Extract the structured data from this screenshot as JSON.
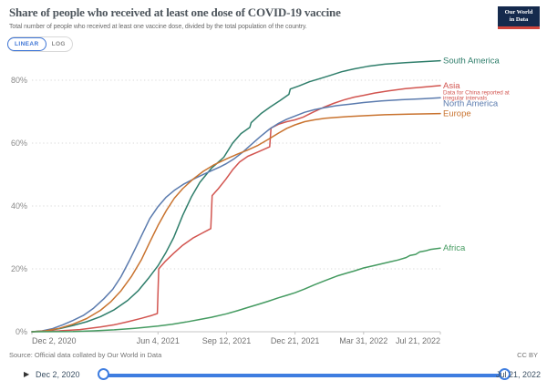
{
  "header": {
    "title": "Share of people who received at least one dose of COVID-19 vaccine",
    "subtitle": "Total number of people who received at least one vaccine dose, divided by the total population of the country.",
    "logo": {
      "line1": "Our World",
      "line2": "in Data"
    }
  },
  "controls": {
    "scale_options": [
      {
        "label": "LINEAR",
        "selected": true
      },
      {
        "label": "LOG",
        "selected": false
      }
    ]
  },
  "footer": {
    "source": "Source: Official data collated by Our World in Data",
    "license": "CC BY"
  },
  "timeline": {
    "play_icon": "▶",
    "start_date": "Dec 2, 2020",
    "end_date": "Jul 21, 2022"
  },
  "chart_data": {
    "type": "line",
    "title": "Share of people who received at least one dose of COVID-19 vaccine",
    "x_axis": {
      "unit": "days since Dec 2, 2020",
      "range_days": [
        0,
        596
      ],
      "tick_days": [
        0,
        184,
        284,
        384,
        484,
        596
      ],
      "tick_labels": [
        "Dec 2, 2020",
        "Jun 4, 2021",
        "Sep 12, 2021",
        "Dec 21, 2021",
        "Mar 31, 2022",
        "Jul 21, 2022"
      ]
    },
    "y_axis": {
      "ticks": [
        0,
        20,
        40,
        60,
        80
      ],
      "tick_labels": [
        "0%",
        "20%",
        "40%",
        "60%",
        "80%"
      ],
      "range": [
        0,
        88
      ],
      "gridlines": "dotted"
    },
    "legend_position": "right of line ends",
    "series": [
      {
        "name": "South America",
        "color": "#2f7e6b",
        "end_value_pct": 86.2,
        "points": [
          [
            0,
            0
          ],
          [
            20,
            0.3
          ],
          [
            40,
            1
          ],
          [
            60,
            2
          ],
          [
            80,
            3.2
          ],
          [
            100,
            4.8
          ],
          [
            120,
            7
          ],
          [
            140,
            10
          ],
          [
            155,
            13
          ],
          [
            170,
            17
          ],
          [
            184,
            21
          ],
          [
            195,
            25
          ],
          [
            207,
            30
          ],
          [
            220,
            37
          ],
          [
            233,
            43
          ],
          [
            245,
            47.5
          ],
          [
            262,
            52
          ],
          [
            275,
            54.5
          ],
          [
            280,
            55.5
          ],
          [
            293,
            60
          ],
          [
            305,
            63
          ],
          [
            318,
            65
          ],
          [
            320,
            66.5
          ],
          [
            335,
            69.5
          ],
          [
            348,
            71.5
          ],
          [
            362,
            73.5
          ],
          [
            375,
            75.5
          ],
          [
            377,
            77.2
          ],
          [
            390,
            78.2
          ],
          [
            405,
            79.5
          ],
          [
            420,
            80.5
          ],
          [
            435,
            81.5
          ],
          [
            452,
            82.7
          ],
          [
            470,
            83.6
          ],
          [
            490,
            84.4
          ],
          [
            515,
            85.1
          ],
          [
            545,
            85.6
          ],
          [
            596,
            86.2
          ]
        ]
      },
      {
        "name": "Asia",
        "color": "#d25550",
        "note": [
          "Data for China reported at",
          "irregular intervals"
        ],
        "end_value_pct": 78.3,
        "points": [
          [
            0,
            0
          ],
          [
            40,
            0.3
          ],
          [
            70,
            0.7
          ],
          [
            100,
            1.5
          ],
          [
            120,
            2.2
          ],
          [
            140,
            3.2
          ],
          [
            160,
            4.3
          ],
          [
            175,
            5.2
          ],
          [
            183,
            5.8
          ],
          [
            185,
            20
          ],
          [
            195,
            22.5
          ],
          [
            207,
            25
          ],
          [
            220,
            27.5
          ],
          [
            235,
            29.8
          ],
          [
            248,
            31.3
          ],
          [
            261,
            32.8
          ],
          [
            263,
            43.3
          ],
          [
            272,
            45.5
          ],
          [
            283,
            48.5
          ],
          [
            293,
            51.5
          ],
          [
            303,
            54
          ],
          [
            315,
            55.8
          ],
          [
            330,
            57.2
          ],
          [
            347,
            58.8
          ],
          [
            349,
            64.8
          ],
          [
            360,
            66
          ],
          [
            372,
            66.8
          ],
          [
            384,
            67.4
          ],
          [
            396,
            68.3
          ],
          [
            410,
            69.8
          ],
          [
            425,
            71.3
          ],
          [
            440,
            72.6
          ],
          [
            455,
            73.7
          ],
          [
            470,
            74.6
          ],
          [
            484,
            75.2
          ],
          [
            500,
            75.9
          ],
          [
            520,
            76.6
          ],
          [
            545,
            77.3
          ],
          [
            570,
            77.8
          ],
          [
            596,
            78.3
          ]
        ]
      },
      {
        "name": "North America",
        "color": "#5b7bae",
        "end_value_pct": 74.4,
        "points": [
          [
            0,
            0
          ],
          [
            15,
            0.3
          ],
          [
            30,
            1
          ],
          [
            45,
            2.2
          ],
          [
            60,
            3.6
          ],
          [
            75,
            5.2
          ],
          [
            90,
            7.5
          ],
          [
            105,
            10.5
          ],
          [
            118,
            13.5
          ],
          [
            130,
            17.5
          ],
          [
            142,
            22.5
          ],
          [
            152,
            27
          ],
          [
            162,
            31.5
          ],
          [
            172,
            36
          ],
          [
            184,
            39.8
          ],
          [
            196,
            42.8
          ],
          [
            208,
            45
          ],
          [
            222,
            47
          ],
          [
            240,
            49
          ],
          [
            258,
            50.8
          ],
          [
            275,
            52.5
          ],
          [
            284,
            53.5
          ],
          [
            295,
            55
          ],
          [
            307,
            57
          ],
          [
            320,
            59.5
          ],
          [
            333,
            62
          ],
          [
            347,
            64.5
          ],
          [
            360,
            66.3
          ],
          [
            372,
            67.6
          ],
          [
            384,
            68.6
          ],
          [
            398,
            69.8
          ],
          [
            412,
            70.6
          ],
          [
            428,
            71.3
          ],
          [
            445,
            71.9
          ],
          [
            465,
            72.4
          ],
          [
            484,
            72.9
          ],
          [
            510,
            73.4
          ],
          [
            540,
            73.8
          ],
          [
            570,
            74.1
          ],
          [
            596,
            74.4
          ]
        ]
      },
      {
        "name": "Europe",
        "color": "#c9732f",
        "end_value_pct": 69.4,
        "points": [
          [
            0,
            0
          ],
          [
            20,
            0.3
          ],
          [
            40,
            1.1
          ],
          [
            60,
            2.4
          ],
          [
            80,
            4.2
          ],
          [
            100,
            6.8
          ],
          [
            115,
            9.5
          ],
          [
            130,
            13
          ],
          [
            145,
            17.5
          ],
          [
            160,
            23
          ],
          [
            172,
            28.5
          ],
          [
            184,
            33.8
          ],
          [
            196,
            38.5
          ],
          [
            208,
            42.5
          ],
          [
            220,
            45.5
          ],
          [
            235,
            48.5
          ],
          [
            250,
            51
          ],
          [
            265,
            53
          ],
          [
            284,
            55
          ],
          [
            300,
            56.5
          ],
          [
            315,
            57.8
          ],
          [
            330,
            59.3
          ],
          [
            345,
            61.2
          ],
          [
            360,
            63.2
          ],
          [
            372,
            64.7
          ],
          [
            384,
            65.8
          ],
          [
            398,
            66.8
          ],
          [
            412,
            67.4
          ],
          [
            428,
            67.9
          ],
          [
            445,
            68.2
          ],
          [
            465,
            68.5
          ],
          [
            484,
            68.7
          ],
          [
            515,
            69
          ],
          [
            550,
            69.2
          ],
          [
            596,
            69.4
          ]
        ]
      },
      {
        "name": "Africa",
        "color": "#459b61",
        "end_value_pct": 26.6,
        "points": [
          [
            0,
            0
          ],
          [
            60,
            0.1
          ],
          [
            90,
            0.3
          ],
          [
            120,
            0.6
          ],
          [
            150,
            1.1
          ],
          [
            184,
            1.8
          ],
          [
            205,
            2.4
          ],
          [
            225,
            3.1
          ],
          [
            245,
            3.9
          ],
          [
            262,
            4.6
          ],
          [
            284,
            5.7
          ],
          [
            300,
            6.7
          ],
          [
            315,
            7.7
          ],
          [
            330,
            8.7
          ],
          [
            345,
            9.7
          ],
          [
            360,
            10.8
          ],
          [
            372,
            11.6
          ],
          [
            384,
            12.4
          ],
          [
            398,
            13.6
          ],
          [
            412,
            14.9
          ],
          [
            428,
            16.3
          ],
          [
            445,
            17.7
          ],
          [
            460,
            18.7
          ],
          [
            470,
            19.3
          ],
          [
            484,
            20.3
          ],
          [
            498,
            21
          ],
          [
            510,
            21.6
          ],
          [
            522,
            22.2
          ],
          [
            534,
            22.8
          ],
          [
            546,
            23.6
          ],
          [
            552,
            24.3
          ],
          [
            560,
            24.6
          ],
          [
            566,
            25.4
          ],
          [
            574,
            25.7
          ],
          [
            582,
            26.2
          ],
          [
            596,
            26.6
          ]
        ]
      }
    ]
  }
}
